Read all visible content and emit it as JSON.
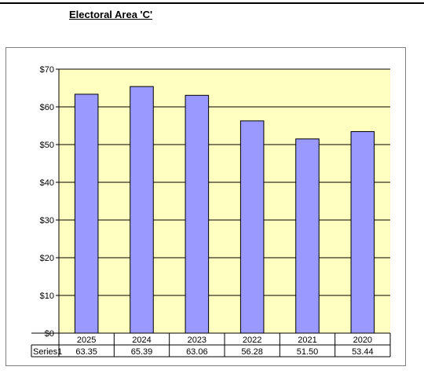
{
  "title": "Electoral Area 'C'",
  "colors": {
    "plot_background": "#ffffc0",
    "bar_fill": "#9999ff",
    "bar_stroke": "#000000",
    "gridline": "#000000"
  },
  "chart_data": {
    "type": "bar",
    "title": "Electoral Area 'C'",
    "xlabel": "",
    "ylabel": "",
    "categories": [
      "2025",
      "2024",
      "2023",
      "2022",
      "2021",
      "2020"
    ],
    "series": [
      {
        "name": "Series1",
        "values": [
          63.35,
          65.39,
          63.06,
          56.28,
          51.5,
          53.44
        ]
      }
    ],
    "data_table_values": [
      "63.35",
      "65.39",
      "63.06",
      "56.28",
      "51.50",
      "53.44"
    ],
    "ylim": [
      0,
      70
    ],
    "y_ticks": [
      0,
      10,
      20,
      30,
      40,
      50,
      60,
      70
    ],
    "y_tick_labels": [
      "$0",
      "$10",
      "$20",
      "$30",
      "$40",
      "$50",
      "$60",
      "$70"
    ],
    "grid": true,
    "legend": "none",
    "data_table": true
  }
}
